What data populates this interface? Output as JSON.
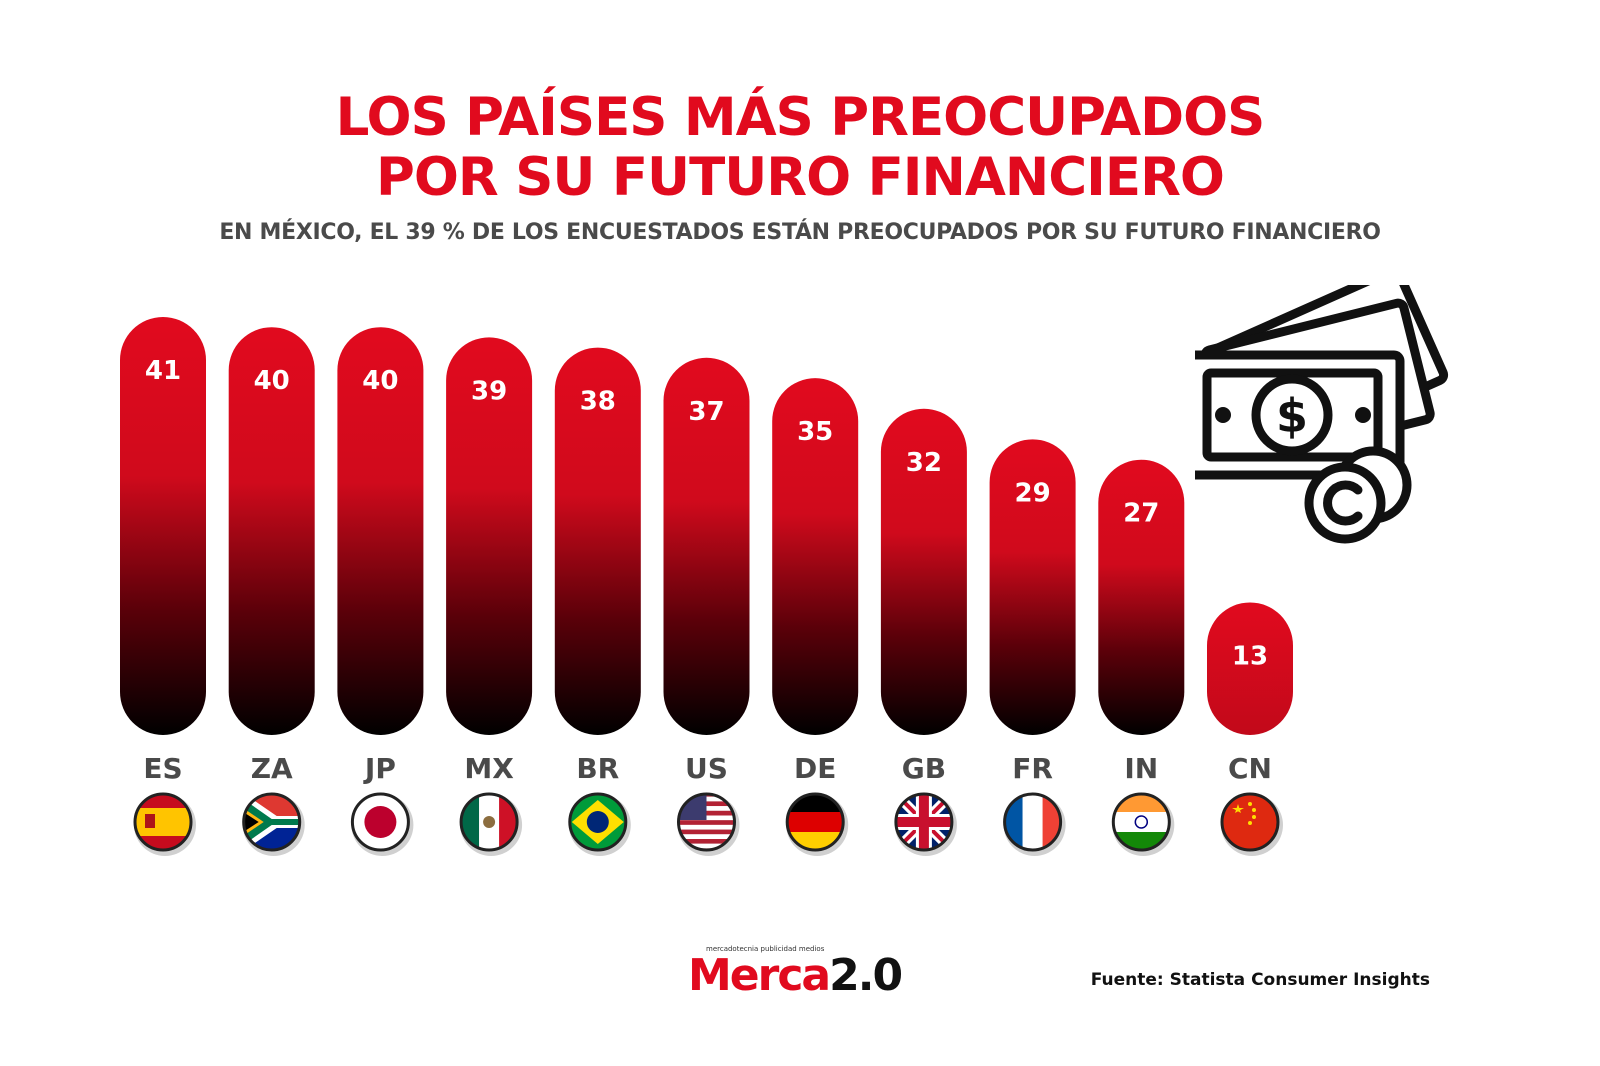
{
  "header": {
    "title_line1": "LOS PAÍSES MÁS PREOCUPADOS",
    "title_line2": "POR SU FUTURO FINANCIERO",
    "subtitle": "EN MÉXICO, EL 39 % DE LOS ENCUESTADOS ESTÁN PREOCUPADOS POR SU FUTURO FINANCIERO"
  },
  "chart_data": {
    "type": "bar",
    "categories": [
      "ES",
      "ZA",
      "JP",
      "MX",
      "BR",
      "US",
      "DE",
      "GB",
      "FR",
      "IN",
      "CN"
    ],
    "values": [
      41,
      40,
      40,
      39,
      38,
      37,
      35,
      32,
      29,
      27,
      13
    ],
    "title": "LOS PAÍSES MÁS PREOCUPADOS POR SU FUTURO FINANCIERO",
    "xlabel": "",
    "ylabel": "",
    "grid": false,
    "colors": {
      "bar_top": "#e10a1e",
      "bar_bottom": "#000000"
    }
  },
  "flags": [
    "spain-flag-icon",
    "south-africa-flag-icon",
    "japan-flag-icon",
    "mexico-flag-icon",
    "brazil-flag-icon",
    "usa-flag-icon",
    "germany-flag-icon",
    "uk-flag-icon",
    "france-flag-icon",
    "india-flag-icon",
    "china-flag-icon"
  ],
  "icons": {
    "money": "money-bills-coins-icon"
  },
  "footer": {
    "logo_tagline": "mercadotecnia publicidad medios",
    "logo_text_red": "Merca",
    "logo_text_dark": "2.0",
    "source": "Fuente: Statista Consumer Insights"
  }
}
